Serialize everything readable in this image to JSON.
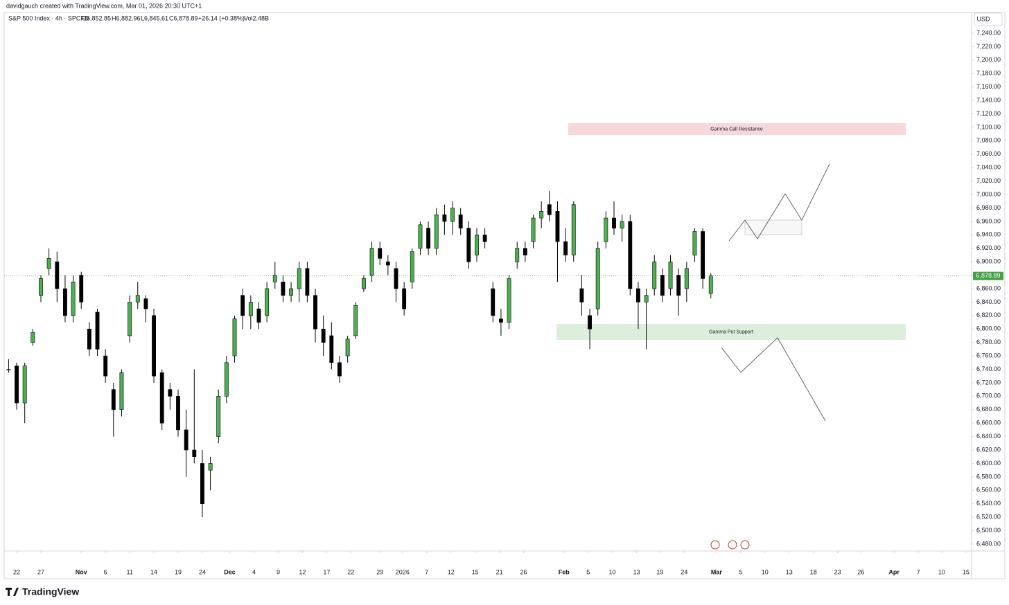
{
  "chart_data": {
    "type": "candlestick",
    "credit": "davidgauch created with TradingView.com, Mar 01, 2026 20:30 UTC+1",
    "legend": {
      "symbol": "S&P 500 Index · 4h · SPCFD",
      "open": "O6,852.85",
      "high": "H6,882.96",
      "low": "L6,845.61",
      "close": "C6,878.89",
      "change": "+26.14 (+0.38%)",
      "volume": "Vol2.48B"
    },
    "currency": "USD",
    "brand": "TradingView",
    "annotations": {
      "resistance": "Gamma Call Resistance",
      "support": "Gamma Put Support"
    },
    "up_color": "#4caf50",
    "down_color": "#000000",
    "wick_color": "#000000",
    "last_price": {
      "value": 6878.89,
      "label": "6,878.89"
    },
    "last_price_color": "#43a047",
    "candles": {
      "x": [
        -1,
        0,
        1,
        2,
        3,
        4,
        5,
        6,
        7,
        8,
        9,
        10,
        11,
        12,
        13,
        14,
        15,
        16,
        17,
        18,
        19,
        20,
        21,
        22,
        23,
        24,
        25,
        26,
        27,
        28,
        29,
        30,
        31,
        32,
        33,
        34,
        35,
        36,
        37,
        38,
        39,
        40,
        41,
        42,
        43,
        44,
        45,
        46,
        47,
        48,
        49,
        50,
        51,
        52,
        53,
        54,
        55,
        56,
        57,
        58,
        59,
        60,
        61,
        62,
        63,
        64,
        65,
        66,
        67,
        68,
        69,
        70,
        71,
        72,
        73,
        74,
        75,
        76,
        77,
        78,
        79,
        80,
        81,
        82,
        83,
        84,
        85,
        86
      ],
      "open": [
        6740,
        6745,
        6690,
        6780,
        6850,
        6890,
        6900,
        6860,
        6820,
        6880,
        6800,
        6825,
        6760,
        6710,
        6680,
        6790,
        6840,
        6845,
        6820,
        6735,
        6710,
        6700,
        6650,
        6620,
        6600,
        6590,
        6640,
        6700,
        6760,
        6850,
        6820,
        6830,
        6820,
        6870,
        6870,
        6850,
        6860,
        6890,
        6850,
        6800,
        6790,
        6750,
        6760,
        6790,
        6860,
        6880,
        6920,
        6900,
        6890,
        6860,
        6870,
        6920,
        6950,
        6920,
        6970,
        6960,
        6970,
        6950,
        6910,
        6940,
        6860,
        6815,
        6810,
        6900,
        6920,
        6930,
        6965,
        6985,
        6975,
        6930,
        6910,
        6860,
        6820,
        6830,
        6930,
        6965,
        6950,
        6960,
        6860,
        6840,
        6860,
        6880,
        6860,
        6880,
        6860,
        6910,
        6945,
        6852.85
      ],
      "high": [
        6755,
        6750,
        6750,
        6800,
        6880,
        6920,
        6915,
        6880,
        6880,
        6885,
        6810,
        6830,
        6770,
        6720,
        6740,
        6850,
        6870,
        6850,
        6830,
        6740,
        6720,
        6710,
        6680,
        6740,
        6620,
        6610,
        6710,
        6760,
        6820,
        6860,
        6850,
        6840,
        6870,
        6900,
        6880,
        6870,
        6900,
        6900,
        6860,
        6820,
        6810,
        6760,
        6790,
        6840,
        6880,
        6930,
        6930,
        6910,
        6900,
        6870,
        6920,
        6960,
        6960,
        6980,
        6985,
        6990,
        6980,
        6960,
        6950,
        6950,
        6870,
        6830,
        6880,
        6930,
        6930,
        6970,
        6990,
        7005,
        6990,
        6950,
        6990,
        6880,
        6830,
        6930,
        6975,
        6990,
        6970,
        6970,
        6870,
        6860,
        6910,
        6890,
        6910,
        6890,
        6900,
        6950,
        6950,
        6882.96
      ],
      "low": [
        6735,
        6680,
        6660,
        6775,
        6840,
        6880,
        6840,
        6810,
        6810,
        6830,
        6760,
        6760,
        6720,
        6640,
        6670,
        6780,
        6830,
        6810,
        6720,
        6650,
        6680,
        6640,
        6580,
        6600,
        6520,
        6560,
        6630,
        6690,
        6750,
        6800,
        6800,
        6800,
        6810,
        6860,
        6840,
        6840,
        6840,
        6840,
        6780,
        6760,
        6740,
        6720,
        6750,
        6785,
        6855,
        6870,
        6895,
        6880,
        6840,
        6820,
        6860,
        6910,
        6910,
        6910,
        6940,
        6940,
        6940,
        6890,
        6900,
        6920,
        6810,
        6790,
        6800,
        6890,
        6900,
        6920,
        6950,
        6960,
        6870,
        6900,
        6900,
        6820,
        6770,
        6820,
        6920,
        6940,
        6930,
        6850,
        6800,
        6770,
        6850,
        6840,
        6850,
        6820,
        6840,
        6900,
        6860,
        6845.61
      ],
      "close": [
        6740,
        6690,
        6745,
        6795,
        6875,
        6905,
        6860,
        6820,
        6870,
        6840,
        6770,
        6770,
        6730,
        6680,
        6735,
        6840,
        6850,
        6830,
        6730,
        6660,
        6700,
        6650,
        6620,
        6610,
        6540,
        6600,
        6700,
        6750,
        6815,
        6820,
        6840,
        6810,
        6860,
        6880,
        6850,
        6860,
        6890,
        6850,
        6800,
        6780,
        6750,
        6730,
        6785,
        6835,
        6875,
        6920,
        6905,
        6895,
        6860,
        6830,
        6915,
        6955,
        6920,
        6970,
        6960,
        6980,
        6950,
        6900,
        6940,
        6930,
        6820,
        6810,
        6875,
        6920,
        6910,
        6965,
        6975,
        6970,
        6930,
        6910,
        6985,
        6840,
        6800,
        6920,
        6965,
        6950,
        6960,
        6860,
        6840,
        6850,
        6900,
        6850,
        6900,
        6850,
        6890,
        6945,
        6875,
        6878.89
      ]
    },
    "xlim": [
      -1.55,
      118.3
    ],
    "xticks": [
      {
        "value": 0,
        "label": "22"
      },
      {
        "value": 3,
        "label": "27"
      },
      {
        "value": 8,
        "label": "Nov"
      },
      {
        "value": 11,
        "label": "6"
      },
      {
        "value": 14,
        "label": "11"
      },
      {
        "value": 17,
        "label": "14"
      },
      {
        "value": 20,
        "label": "19"
      },
      {
        "value": 23,
        "label": "24"
      },
      {
        "value": 26.4,
        "label": "Dec"
      },
      {
        "value": 29.4,
        "label": "4"
      },
      {
        "value": 32.4,
        "label": "9"
      },
      {
        "value": 35.4,
        "label": "12"
      },
      {
        "value": 38.4,
        "label": "17"
      },
      {
        "value": 41.4,
        "label": "22"
      },
      {
        "value": 45,
        "label": "29"
      },
      {
        "value": 47.8,
        "label": "2026"
      },
      {
        "value": 50.8,
        "label": "7"
      },
      {
        "value": 53.8,
        "label": "12"
      },
      {
        "value": 56.8,
        "label": "15"
      },
      {
        "value": 59.8,
        "label": "21"
      },
      {
        "value": 62.8,
        "label": "26"
      },
      {
        "value": 67.8,
        "label": "Feb"
      },
      {
        "value": 70.8,
        "label": "5"
      },
      {
        "value": 73.8,
        "label": "10"
      },
      {
        "value": 76.8,
        "label": "13"
      },
      {
        "value": 79.7,
        "label": "19"
      },
      {
        "value": 82.7,
        "label": "24"
      },
      {
        "value": 86.7,
        "label": "Mar"
      },
      {
        "value": 89.7,
        "label": "5"
      },
      {
        "value": 92.7,
        "label": "10"
      },
      {
        "value": 95.7,
        "label": "13"
      },
      {
        "value": 98.7,
        "label": "18"
      },
      {
        "value": 101.7,
        "label": "23"
      },
      {
        "value": 104.6,
        "label": "26"
      },
      {
        "value": 108.7,
        "label": "Apr"
      },
      {
        "value": 111.7,
        "label": "7"
      },
      {
        "value": 114.6,
        "label": "10"
      },
      {
        "value": 117.6,
        "label": "15"
      }
    ],
    "ylim": [
      6469.7,
      7270.9
    ],
    "yticks": [
      {
        "value": 6480,
        "label": "6,480.00"
      },
      {
        "value": 6500,
        "label": "6,500.00"
      },
      {
        "value": 6520,
        "label": "6,520.00"
      },
      {
        "value": 6540,
        "label": "6,540.00"
      },
      {
        "value": 6560,
        "label": "6,560.00"
      },
      {
        "value": 6580,
        "label": "6,580.00"
      },
      {
        "value": 6600,
        "label": "6,600.00"
      },
      {
        "value": 6620,
        "label": "6,620.00"
      },
      {
        "value": 6640,
        "label": "6,640.00"
      },
      {
        "value": 6660,
        "label": "6,660.00"
      },
      {
        "value": 6680,
        "label": "6,680.00"
      },
      {
        "value": 6700,
        "label": "6,700.00"
      },
      {
        "value": 6720,
        "label": "6,720.00"
      },
      {
        "value": 6740,
        "label": "6,740.00"
      },
      {
        "value": 6760,
        "label": "6,760.00"
      },
      {
        "value": 6780,
        "label": "6,780.00"
      },
      {
        "value": 6800,
        "label": "6,800.00"
      },
      {
        "value": 6820,
        "label": "6,820.00"
      },
      {
        "value": 6840,
        "label": "6,840.00"
      },
      {
        "value": 6860,
        "label": "6,860.00"
      },
      {
        "value": 6880,
        "label": "6,880.00"
      },
      {
        "value": 6900,
        "label": "6,900.00"
      },
      {
        "value": 6920,
        "label": "6,920.00"
      },
      {
        "value": 6940,
        "label": "6,940.00"
      },
      {
        "value": 6960,
        "label": "6,960.00"
      },
      {
        "value": 6980,
        "label": "6,980.00"
      },
      {
        "value": 7000,
        "label": "7,000.00"
      },
      {
        "value": 7020,
        "label": "7,020.00"
      },
      {
        "value": 7040,
        "label": "7,040.00"
      },
      {
        "value": 7060,
        "label": "7,060.00"
      },
      {
        "value": 7080,
        "label": "7,080.00"
      },
      {
        "value": 7100,
        "label": "7,100.00"
      },
      {
        "value": 7120,
        "label": "7,120.00"
      },
      {
        "value": 7140,
        "label": "7,140.00"
      },
      {
        "value": 7160,
        "label": "7,160.00"
      },
      {
        "value": 7180,
        "label": "7,180.00"
      },
      {
        "value": 7200,
        "label": "7,200.00"
      },
      {
        "value": 7220,
        "label": "7,220.00"
      },
      {
        "value": 7240,
        "label": "7,240.00"
      }
    ],
    "grid": false
  }
}
